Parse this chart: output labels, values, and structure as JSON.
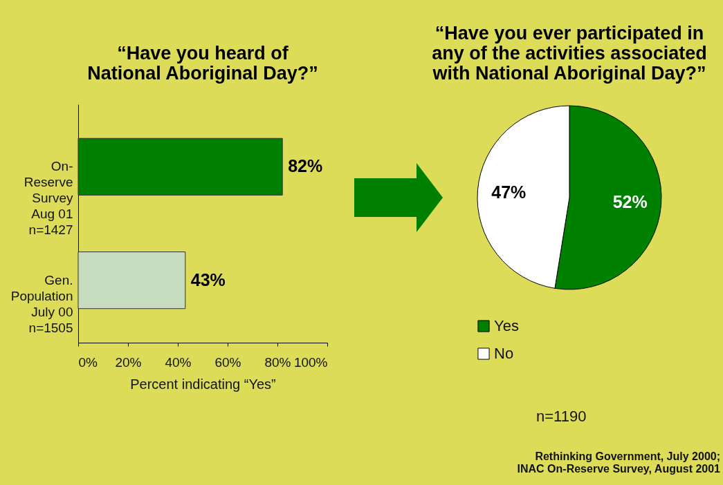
{
  "chart_data": [
    {
      "type": "bar",
      "orientation": "horizontal",
      "title": "“Have you heard of\nNational Aboriginal Day?”",
      "xlabel": "Percent indicating “Yes”",
      "categories": [
        "On-\nReserve\nSurvey\nAug 01\nn=1427",
        "Gen.\nPopulation\nJuly 00\nn=1505"
      ],
      "values": [
        82,
        43
      ],
      "colors": [
        "#008000",
        "#c8dcc0"
      ],
      "value_labels": [
        "82%",
        "43%"
      ],
      "xlim": [
        0,
        100
      ],
      "xticks": [
        {
          "value": 0,
          "label": "0%"
        },
        {
          "value": 20,
          "label": "20%"
        },
        {
          "value": 40,
          "label": "40%"
        },
        {
          "value": 60,
          "label": "60%"
        },
        {
          "value": 80,
          "label": "80%"
        },
        {
          "value": 100,
          "label": "100%"
        }
      ]
    },
    {
      "type": "pie",
      "title": "“Have you ever participated in\nany of the activities associated\nwith National Aboriginal Day?”",
      "categories": [
        "Yes",
        "No"
      ],
      "values": [
        52,
        47
      ],
      "colors": [
        "#008000",
        "#ffffff"
      ],
      "value_labels": [
        "52%",
        "47%"
      ],
      "legend": "bottom",
      "annotations": [
        "n=1190",
        "Rethinking Government, July 2000;\nINAC On-Reserve Survey, August 2001"
      ]
    }
  ]
}
